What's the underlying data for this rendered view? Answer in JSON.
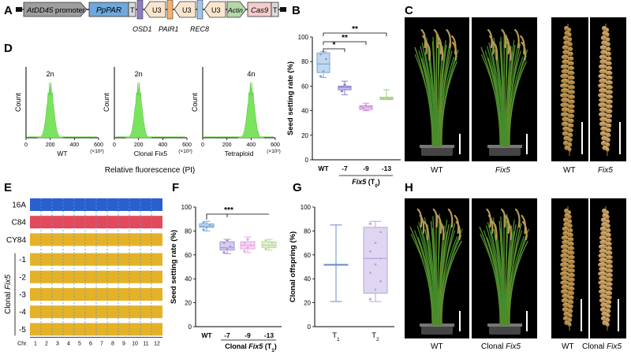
{
  "panel_labels": [
    "A",
    "B",
    "C",
    "D",
    "E",
    "F",
    "G",
    "H"
  ],
  "panel_a": {
    "elements": [
      {
        "label": "AtDD45 promoter",
        "kind": "promoter",
        "italic_part": "AtDD45",
        "color": "#9e9e9e"
      },
      {
        "label": "PpPAR",
        "kind": "gene",
        "italic": true,
        "color": "#6fa8dc"
      },
      {
        "label": "T",
        "kind": "terminator",
        "color": "#d9d9d9"
      },
      {
        "label": "OSD1",
        "kind": "grna",
        "color": "#8e7cc3"
      },
      {
        "label": "U3",
        "kind": "u3",
        "color": "#fce5cd"
      },
      {
        "label": "PAIR1",
        "kind": "grna",
        "color": "#f6b26b"
      },
      {
        "label": "U3",
        "kind": "u3",
        "color": "#fce5cd"
      },
      {
        "label": "REC8",
        "kind": "grna",
        "color": "#9fc5e8"
      },
      {
        "label": "U3",
        "kind": "u3",
        "color": "#fce5cd"
      },
      {
        "label": "Actin",
        "kind": "promoter",
        "italic": true,
        "color": "#b6d7a8"
      },
      {
        "label": "Cas9",
        "kind": "gene",
        "italic": true,
        "color": "#f4cccc"
      },
      {
        "label": "T",
        "kind": "terminator",
        "color": "#d9d9d9"
      }
    ]
  },
  "panel_d": {
    "ylabel": "Count",
    "xlabel": "Relative fluorescence (PI)",
    "tick_labels": [
      "0",
      "200",
      "400",
      "600"
    ],
    "scale_label": "(×10³)",
    "histograms": [
      {
        "peak_label": "2n",
        "name": "WT",
        "peak": 200
      },
      {
        "peak_label": "2n",
        "name": "Clonal Fix5",
        "peak": 200
      },
      {
        "peak_label": "4n",
        "name": "Tetraploid",
        "peak": 400
      }
    ]
  },
  "chart_data": [
    {
      "panel": "B",
      "type": "box",
      "ylabel": "Seed setting rate (%)",
      "ylim": [
        0,
        100
      ],
      "yticks": [
        "0",
        "20",
        "40",
        "60",
        "80",
        "100"
      ],
      "categories": [
        "WT",
        "-7",
        "-9",
        "-13"
      ],
      "group_label": "Fix5 (T0)",
      "significance": [
        "*",
        "**",
        "**"
      ],
      "series": [
        {
          "name": "WT",
          "min": 67,
          "q1": 71,
          "median": 78,
          "q3": 87,
          "max": 88,
          "color": "#7aa6d8",
          "points": [
            68,
            72,
            82,
            86
          ]
        },
        {
          "name": "-7",
          "min": 53,
          "q1": 57,
          "median": 59,
          "q3": 60,
          "max": 64,
          "color": "#8a7cc8",
          "points": [
            56,
            61
          ]
        },
        {
          "name": "-9",
          "min": 40,
          "q1": 41,
          "median": 43,
          "q3": 44,
          "max": 46,
          "color": "#d08ad8",
          "points": [
            42,
            44
          ]
        },
        {
          "name": "-13",
          "min": 49,
          "q1": 49,
          "median": 50,
          "q3": 51,
          "max": 57,
          "color": "#9ccc7a",
          "points": [
            50
          ]
        }
      ]
    },
    {
      "panel": "F",
      "type": "box",
      "ylabel": "Seed setting rate (%)",
      "ylim": [
        0,
        100
      ],
      "yticks": [
        "0",
        "20",
        "40",
        "60",
        "80",
        "100"
      ],
      "categories": [
        "WT",
        "-7",
        "-9",
        "-13"
      ],
      "group_label": "Clonal Fix5 (T1)",
      "significance": [
        "***"
      ],
      "series": [
        {
          "name": "WT",
          "min": 80,
          "q1": 83,
          "median": 84,
          "q3": 86,
          "max": 88,
          "color": "#7aa6d8",
          "points": [
            81,
            83,
            85,
            87
          ]
        },
        {
          "name": "-7",
          "min": 61,
          "q1": 64,
          "median": 66,
          "q3": 71,
          "max": 73,
          "color": "#a58fd6",
          "points": [
            62,
            65,
            67,
            70,
            72
          ]
        },
        {
          "name": "-9",
          "min": 62,
          "q1": 65,
          "median": 68,
          "q3": 71,
          "max": 75,
          "color": "#e7a6e0",
          "points": [
            63,
            66,
            68,
            70,
            73
          ]
        },
        {
          "name": "-13",
          "min": 64,
          "q1": 66,
          "median": 68,
          "q3": 71,
          "max": 73,
          "color": "#b7da96",
          "points": [
            65,
            68,
            70,
            72
          ]
        }
      ]
    },
    {
      "panel": "G",
      "type": "box",
      "ylabel": "Clonal offspring (%)",
      "ylim": [
        0,
        100
      ],
      "yticks": [
        "0",
        "20",
        "40",
        "60",
        "80",
        "100"
      ],
      "categories": [
        "T1",
        "T2"
      ],
      "series": [
        {
          "name": "T1",
          "min": 21,
          "q1": 52,
          "median": 52,
          "q3": 52,
          "max": 85,
          "color": "#6a8fc8",
          "points": []
        },
        {
          "name": "T2",
          "min": 21,
          "q1": 28,
          "median": 57,
          "q3": 83,
          "max": 88,
          "color": "#b9a3e0",
          "points": [
            23,
            31,
            38,
            45,
            52,
            57,
            63,
            70,
            79,
            86
          ]
        }
      ]
    }
  ],
  "panel_c": {
    "labels": [
      "WT",
      "Fix5",
      "WT",
      "Fix5"
    ],
    "italic": [
      false,
      true,
      false,
      true
    ]
  },
  "panel_e": {
    "rows": [
      {
        "label": "16A",
        "color": "#2a5fcf"
      },
      {
        "label": "C84",
        "color": "#e3495a"
      },
      {
        "label": "CY84",
        "color": "#e5b227"
      },
      {
        "label": "-1",
        "color": "#e5b227"
      },
      {
        "label": "-2",
        "color": "#e5b227"
      },
      {
        "label": "-3",
        "color": "#e5b227"
      },
      {
        "label": "-4",
        "color": "#e5b227"
      },
      {
        "label": "-5",
        "color": "#e5b227"
      }
    ],
    "side_label": "Clonal Fix5",
    "chr_label": "Chr.",
    "chromosomes": [
      "1",
      "2",
      "3",
      "4",
      "5",
      "6",
      "7",
      "8",
      "9",
      "10",
      "11",
      "12"
    ]
  },
  "panel_h": {
    "labels": [
      "WT",
      "Clonal Fix5",
      "WT",
      "Clonal Fix5"
    ]
  }
}
